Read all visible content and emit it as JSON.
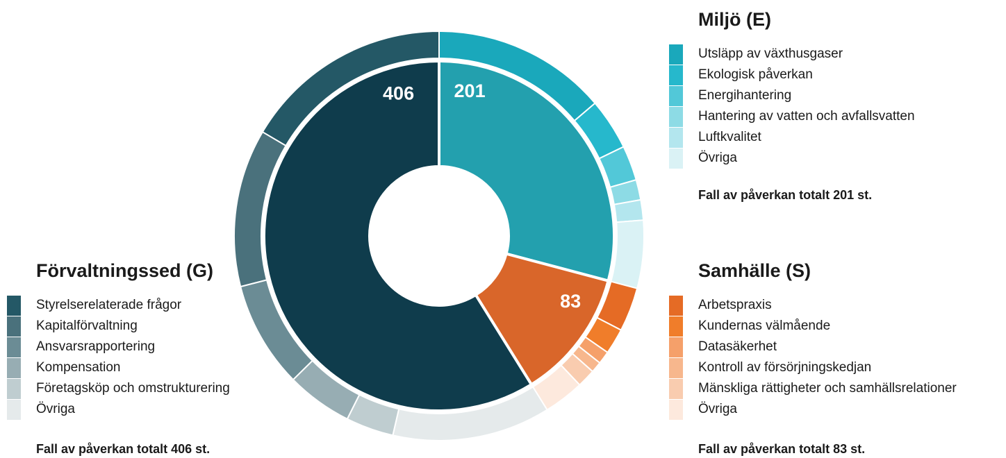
{
  "chart_data": {
    "type": "sunburst",
    "groups": [
      {
        "name": "Miljö (E)",
        "value": 201,
        "color": "#23a0ae",
        "total_label": "Fall av påverkan totalt 201 st.",
        "children": [
          {
            "name": "Utsläpp av växthusgaser",
            "value": 95,
            "color": "#1aa8bb"
          },
          {
            "name": "Ekologisk påverkan",
            "value": 28,
            "color": "#26b8cc"
          },
          {
            "name": "Energihantering",
            "value": 19,
            "color": "#52c8d8"
          },
          {
            "name": "Hantering av vatten och avfallsvatten",
            "value": 11,
            "color": "#8ddbe5"
          },
          {
            "name": "Luftkvalitet",
            "value": 11,
            "color": "#b3e6ee"
          },
          {
            "name": "Övriga",
            "value": 37,
            "color": "#daf2f5"
          }
        ]
      },
      {
        "name": "Samhälle (S)",
        "value": 83,
        "color": "#d9662a",
        "total_label": "Fall av påverkan totalt 83 st.",
        "children": [
          {
            "name": "Arbetspraxis",
            "value": 24,
            "color": "#e56b25"
          },
          {
            "name": "Kundernas välmående",
            "value": 14,
            "color": "#f07d2a"
          },
          {
            "name": "Datasäkerhet",
            "value": 7,
            "color": "#f5a06a"
          },
          {
            "name": "Kontroll av försörjningskedjan",
            "value": 6,
            "color": "#f7b78d"
          },
          {
            "name": "Mänskliga rättigheter och samhällsrelationer",
            "value": 10,
            "color": "#f9ccaf"
          },
          {
            "name": "Övriga",
            "value": 22,
            "color": "#fde9dd"
          }
        ]
      },
      {
        "name": "Förvaltningssed (G)",
        "value": 406,
        "color": "#0f3c4c",
        "total_label": "Fall av påverkan totalt 406 st.",
        "children": [
          {
            "name": "Styrelserelaterade frågor",
            "value": 114,
            "color": "#245866"
          },
          {
            "name": "Kapitalförvaltning",
            "value": 86,
            "color": "#4a717c"
          },
          {
            "name": "Ansvarsrapportering",
            "value": 58,
            "color": "#6b8c95"
          },
          {
            "name": "Kompensation",
            "value": 36,
            "color": "#97adb3"
          },
          {
            "name": "Företagsköp och omstrukturering",
            "value": 26,
            "color": "#bfcdd0"
          },
          {
            "name": "Övriga",
            "value": 86,
            "color": "#e5eaeb"
          }
        ]
      }
    ]
  }
}
